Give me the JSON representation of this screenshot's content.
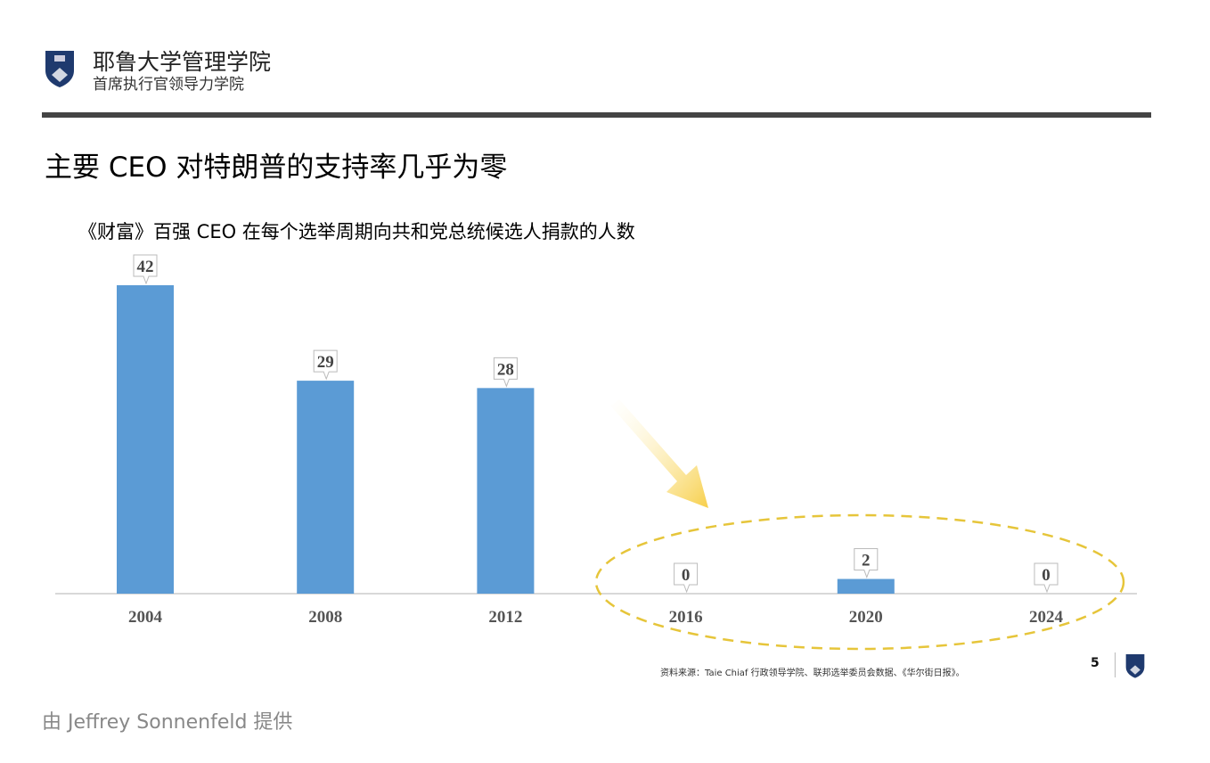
{
  "header": {
    "school": "耶鲁大学管理学院",
    "subtitle": "首席执行官领导力学院"
  },
  "slide_title": "主要 CEO 对特朗普的支持率几乎为零",
  "chart_data": {
    "type": "bar",
    "title": "《财富》百强 CEO 在每个选举周期向共和党总统候选人捐款的人数",
    "categories": [
      "2004",
      "2008",
      "2012",
      "2016",
      "2020",
      "2024"
    ],
    "values": [
      42,
      29,
      28,
      0,
      2,
      0
    ],
    "ylim": [
      0,
      42
    ],
    "bar_color": "#5b9bd5",
    "annotation": "dashed ellipse highlighting 2016-2024 with arrow"
  },
  "footer": {
    "source": "资料来源：Taie Chiaf 行政领导学院、联邦选举委员会数据、《华尔街日报》。",
    "page": "5"
  },
  "credit": "由 Jeffrey Sonnenfeld 提供"
}
